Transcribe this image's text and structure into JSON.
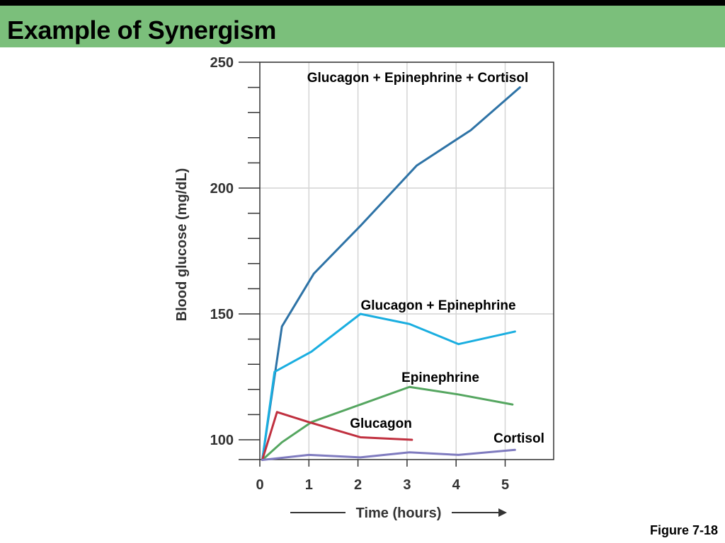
{
  "slide": {
    "title": "Example of Synergism",
    "figure_label": "Figure 7-18"
  },
  "colors": {
    "header_bg": "#7bbf7b",
    "grid": "#d4d4d4",
    "axis": "#333333"
  },
  "chart_data": {
    "type": "line",
    "ylabel": "Blood glucose (mg/dL)",
    "xlabel": "Time (hours)",
    "xlim": [
      0,
      6
    ],
    "ylim": [
      91,
      250
    ],
    "x_ticks": [
      0,
      1,
      2,
      3,
      4,
      5
    ],
    "y_ticks": [
      100,
      150,
      200,
      250
    ],
    "grid": true,
    "series": [
      {
        "name": "Glucagon + Epinephrine + Cortisol",
        "color": "#2e73a6",
        "x": [
          0.05,
          0.45,
          1.1,
          2.05,
          3.2,
          4.3,
          5.3
        ],
        "y": [
          92,
          145,
          166,
          185,
          209,
          223,
          240
        ]
      },
      {
        "name": "Glucagon + Epinephrine",
        "color": "#1aaee0",
        "x": [
          0.05,
          0.3,
          1.05,
          2.05,
          3.05,
          4.05,
          5.2
        ],
        "y": [
          92,
          127,
          135,
          150,
          146,
          138,
          143
        ]
      },
      {
        "name": "Epinephrine",
        "color": "#55a660",
        "x": [
          0.05,
          0.45,
          1.05,
          2.05,
          3.05,
          4.05,
          5.15
        ],
        "y": [
          92,
          99,
          107,
          114,
          121,
          118,
          114
        ]
      },
      {
        "name": "Glucagon",
        "color": "#c0303f",
        "x": [
          0.05,
          0.35,
          1.0,
          2.05,
          3.1
        ],
        "y": [
          92,
          111,
          107,
          101,
          100
        ]
      },
      {
        "name": "Cortisol",
        "color": "#7f7bbf",
        "x": [
          0.05,
          1.0,
          2.05,
          3.05,
          4.05,
          5.2
        ],
        "y": [
          92,
          94,
          93,
          95,
          94,
          96
        ]
      }
    ]
  }
}
